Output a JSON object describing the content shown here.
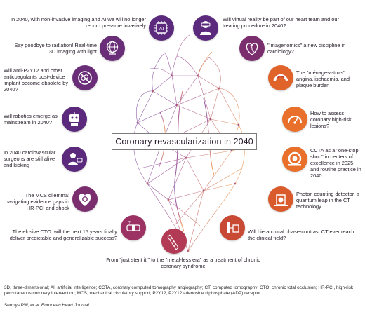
{
  "title": "Coronary revascularization in 2040",
  "colors": {
    "purple": "#5b2a7c",
    "plum": "#7a2e6e",
    "mauve": "#9c3163",
    "red": "#c0392b",
    "orange": "#e8702a",
    "heart_purple": "#7a4a9e",
    "heart_orange": "#e38a3c"
  },
  "topics": [
    {
      "id": "ai",
      "icon": "ai-chip-icon",
      "text": "In 2040, with non-invasive imaging and AI we will no longer record pressure invasively"
    },
    {
      "id": "vr",
      "icon": "vr-headset-icon",
      "text": "Will virtual reality be part of our heart team and our treating procedure in 2040?"
    },
    {
      "id": "radiation",
      "icon": "globe-icon",
      "text": "Say goodbye to radiation! Real-time 3D imaging with light"
    },
    {
      "id": "imagenomics",
      "icon": "dna-heart-icon",
      "text": "\"Imagenomics\" a new discipline in cardiology?"
    },
    {
      "id": "antiplatelet",
      "icon": "no-pills-icon",
      "text": "Will anti-P2Y12 and other anticoagulants post-device implant become obsolete by 2040?"
    },
    {
      "id": "menage",
      "icon": "artery-plaque-icon",
      "text": "The \"ménage-a-trois\" angina, ischaemia, and plaque burden"
    },
    {
      "id": "robotics",
      "icon": "robot-icon",
      "text": "Will robotics emerge as mainstream in 2040?"
    },
    {
      "id": "highrisk",
      "icon": "gauge-icon",
      "text": "How to assess coronary high-risk lesions?"
    },
    {
      "id": "surgeons",
      "icon": "surgeon-icon",
      "text": "In 2040 cardiovascular surgeons are still alive and kicking"
    },
    {
      "id": "ccta",
      "icon": "ct-scanner-icon",
      "text": "CCTA as a \"one-stop shop\" in centers of excellence in 2025, and routine practice in 2040"
    },
    {
      "id": "mcs",
      "icon": "heart-gear-icon",
      "text": "The MCS dilemma: navigating evidence gaps in HR-PCI and shock"
    },
    {
      "id": "photon",
      "icon": "ct-table-icon",
      "text": "Photon counting detector, a quantum leap in the CT technology"
    },
    {
      "id": "cto",
      "icon": "occluded-vessel-icon",
      "text": "The elusive CTO: will the next 15 years finally deliver predictable and generalizable success?"
    },
    {
      "id": "stent",
      "icon": "stent-icon",
      "text": "From \"just stent it!\" to the \"metal-less era\" as a treatment of chronic coronary syndrome"
    },
    {
      "id": "phasect",
      "icon": "phase-ct-icon",
      "text": "Will hierarchical phase-contrast CT ever reach the clinical field?"
    }
  ],
  "footnote": [
    {
      "term": "3D",
      "def": ", three-dimensional; "
    },
    {
      "term": "AI",
      "def": ", artificial intelligence; "
    },
    {
      "term": "CCTA",
      "def": ", coronary computed tomography angiography; "
    },
    {
      "term": "CT",
      "def": ", computed tomography; "
    },
    {
      "term": "CTO",
      "def": ", chronic total occlusion; "
    },
    {
      "term": "HR-PCI",
      "def": ", high-risk percutaneous coronary intervention; "
    },
    {
      "term": "MCS",
      "def": ", mechanical circulatory support; "
    },
    {
      "term": "P2Y12",
      "def": ", P2Y12 adenosine diphosphate (ADP) receptor"
    }
  ],
  "citation": {
    "authors": "Serruys PW, ",
    "rest": "et al. European Heart Journal."
  }
}
